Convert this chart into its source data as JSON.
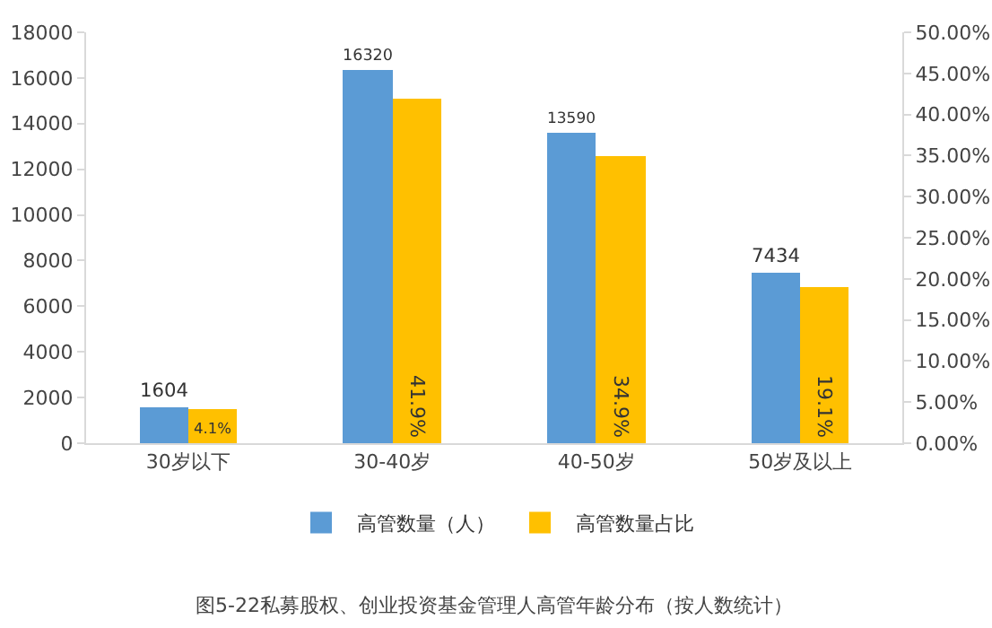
{
  "chart_data": {
    "type": "bar",
    "categories": [
      "30岁以下",
      "30-40岁",
      "40-50岁",
      "50岁及以上"
    ],
    "series": [
      {
        "name": "高管数量（人）",
        "color": "#5b9bd5",
        "values": [
          1604,
          16320,
          13590,
          7434
        ],
        "value_labels": [
          "1604",
          "16320",
          "13590",
          "7434"
        ]
      },
      {
        "name": "高管数量占比",
        "color": "#ffc000",
        "axis": "y2",
        "values": [
          4.1,
          41.9,
          34.9,
          19.1
        ],
        "value_labels": [
          "4.1%",
          "41.9%",
          "34.9%",
          "19.1%"
        ]
      }
    ],
    "ylim": [
      0,
      18000
    ],
    "yticks": [
      0,
      2000,
      4000,
      6000,
      8000,
      10000,
      12000,
      14000,
      16000,
      18000
    ],
    "y2lim": [
      0,
      50
    ],
    "y2ticks": [
      {
        "value": 0,
        "label": "0.00%"
      },
      {
        "value": 5,
        "label": "5.00%"
      },
      {
        "value": 10,
        "label": "10.00%"
      },
      {
        "value": 15,
        "label": "15.00%"
      },
      {
        "value": 20,
        "label": "20.00%"
      },
      {
        "value": 25,
        "label": "25.00%"
      },
      {
        "value": 30,
        "label": "30.00%"
      },
      {
        "value": 35,
        "label": "35.00%"
      },
      {
        "value": 40,
        "label": "40.00%"
      },
      {
        "value": 45,
        "label": "45.00%"
      },
      {
        "value": 50,
        "label": "50.00%"
      }
    ],
    "grid": false,
    "legend": "bottom",
    "annotations": [
      "图5-22私募股权、创业投资基金管理人高管年龄分布（按人数统计）"
    ]
  }
}
